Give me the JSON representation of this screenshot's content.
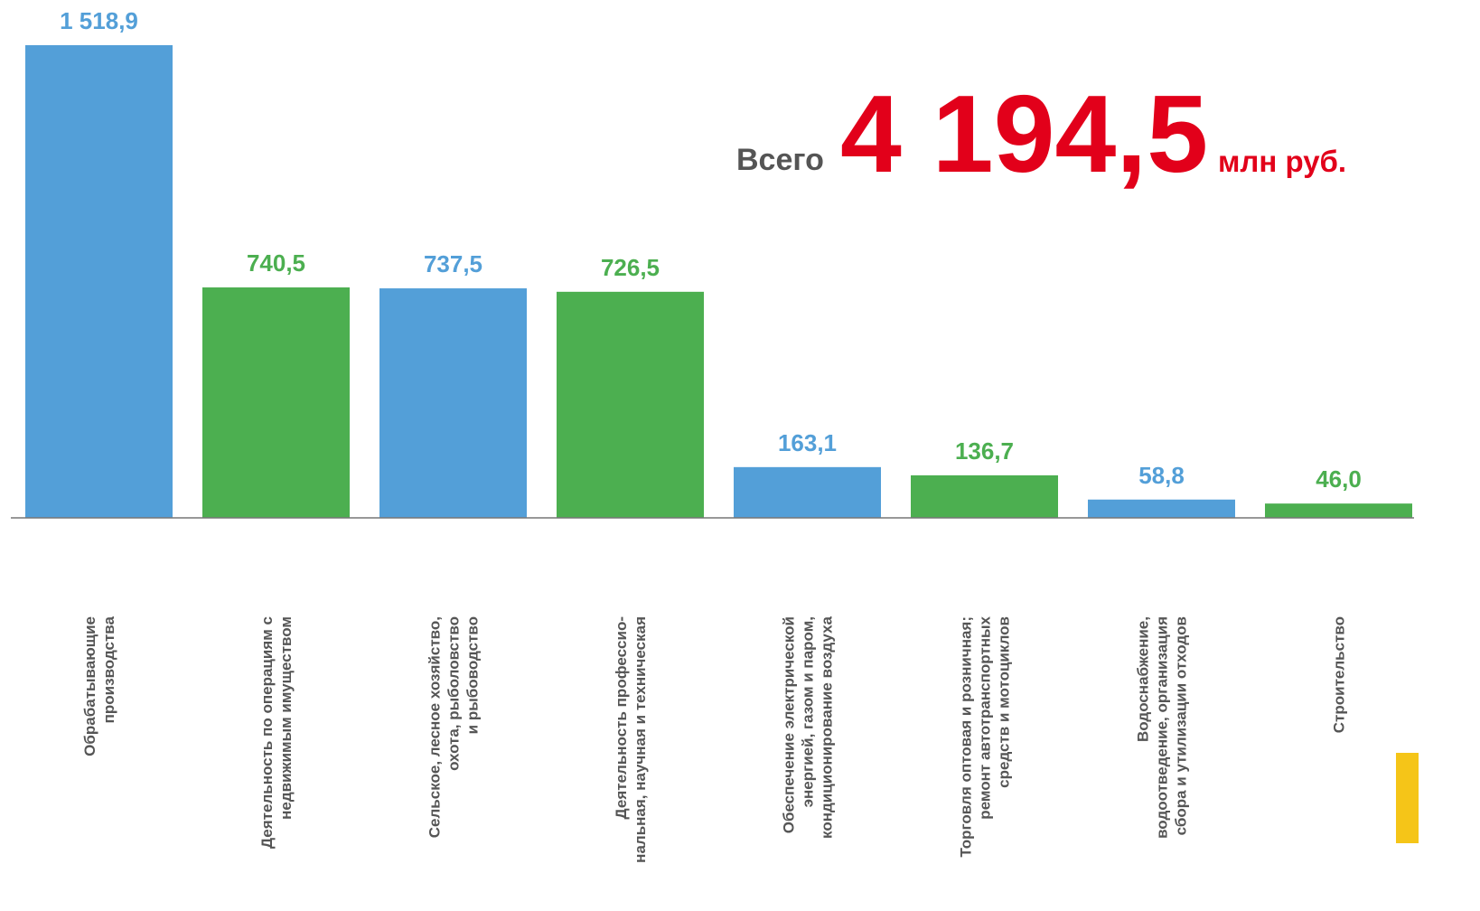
{
  "chart_data": {
    "type": "bar",
    "categories": [
      "Обрабатывающие\nпроизводства",
      "Деятельность  по операциям с\nнедвижимым имуществом",
      "Сельское, лесное хозяйство,\nохота, рыболовство\nи рыбоводство",
      "Деятельность  профессио-\nнальная, научная и техническая",
      "Обеспечение  электрической\nэнергией, газом и паром,\nкондиционирование воздуха",
      "Торговля оптовая и розничная;\nремонт автотранспортных\nсредств  и мотоциклов",
      "Водоснабжение,\nводоотведение, организация\nсбора и утилизации отходов",
      "Строительство"
    ],
    "values": [
      1518.9,
      740.5,
      737.5,
      726.5,
      163.1,
      136.7,
      58.8,
      46.0
    ],
    "value_labels": [
      "1 518,9",
      "740,5",
      "737,5",
      "726,5",
      "163,1",
      "136,7",
      "58,8",
      "46,0"
    ],
    "colors": [
      "#539fd8",
      "#4caf50",
      "#539fd8",
      "#4caf50",
      "#539fd8",
      "#4caf50",
      "#539fd8",
      "#4caf50"
    ],
    "annotations": {
      "total_prefix": "Всего",
      "total": "4 194,5",
      "total_unit": "млн руб."
    }
  }
}
